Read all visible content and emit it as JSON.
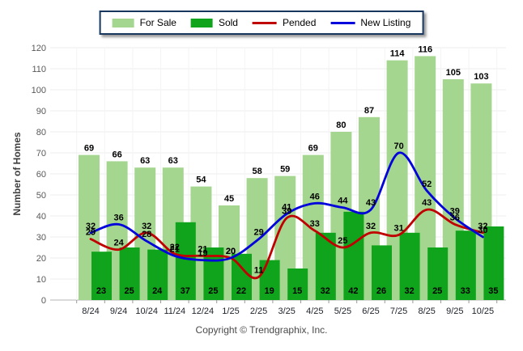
{
  "chart_data": {
    "type": "bar",
    "subtype": "grouped bars with smoothed overlay lines",
    "categories": [
      "8/24",
      "9/24",
      "10/24",
      "11/24",
      "12/24",
      "1/25",
      "2/25",
      "3/25",
      "4/25",
      "5/25",
      "6/25",
      "7/25",
      "8/25",
      "9/25",
      "10/25"
    ],
    "series": [
      {
        "name": "For Sale",
        "type": "bar",
        "color": "#A5D68F",
        "values": [
          69,
          66,
          63,
          63,
          54,
          45,
          58,
          59,
          69,
          80,
          87,
          114,
          116,
          105,
          103
        ]
      },
      {
        "name": "Sold",
        "type": "bar",
        "color": "#0FA41B",
        "values": [
          23,
          25,
          24,
          37,
          25,
          22,
          19,
          15,
          32,
          42,
          26,
          32,
          25,
          33,
          35
        ]
      },
      {
        "name": "Pended",
        "type": "line",
        "color": "#C00000",
        "values": [
          29,
          24,
          32,
          22,
          21,
          20,
          11,
          39,
          33,
          25,
          32,
          31,
          43,
          36,
          32
        ]
      },
      {
        "name": "New Listing",
        "type": "line",
        "color": "#0202DC",
        "values": [
          32,
          36,
          28,
          21,
          19,
          20,
          29,
          41,
          46,
          44,
          43,
          70,
          52,
          39,
          30
        ]
      }
    ],
    "title": "",
    "xlabel": "",
    "ylabel": "Number of Homes",
    "ylim": [
      0,
      120
    ],
    "ytick_step": 10,
    "grid": true,
    "legend_position": "top-center"
  },
  "footer": {
    "copyright": "Copyright © Trendgraphix, Inc."
  }
}
